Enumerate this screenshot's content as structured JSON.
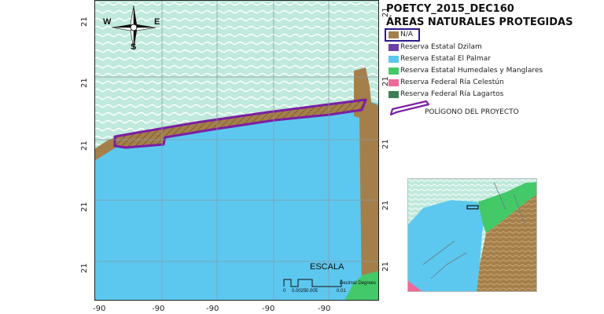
{
  "legend": {
    "code": "POETCY_2015_DEC160",
    "title": "ÁREAS NATURALES PROTEGIDAS",
    "items": [
      {
        "label": "N/A",
        "color": "#a57f4a"
      },
      {
        "label": "Reserva Estatal Dzilam",
        "color": "#6a3fa8"
      },
      {
        "label": "Reserva Estatal El Palmar",
        "color": "#5cc8ef"
      },
      {
        "label": "Reserva Estatal Humedales y Manglares",
        "color": "#43c968"
      },
      {
        "label": "Reserva Federal Ría Celestún",
        "color": "#ef6a9b"
      },
      {
        "label": "Reserva Federal Ría Lagartos",
        "color": "#3c7f55"
      }
    ],
    "polygon_label": "POLÍGONO DEL PROYECTO",
    "polygon_color": "#7b1fa2"
  },
  "compass": {
    "n": "N",
    "s": "S",
    "e": "E",
    "w": "W"
  },
  "left_lat_labels": [
    "21",
    "21",
    "21",
    "21",
    "21"
  ],
  "right_lat_labels": [
    "21",
    "21",
    "21",
    "21",
    "21"
  ],
  "bottom_lon_labels": [
    "-90",
    "-90",
    "-90",
    "-90",
    "-90"
  ],
  "scale": {
    "title": "ESCALA",
    "ticks": [
      "0",
      "0.0025",
      "0.005",
      "0.01"
    ],
    "unit": "Decimal Degrees"
  },
  "colors": {
    "sea": "#5cc8ef",
    "land": "#bfe9dc",
    "hatch": "#ffffff",
    "brown": "#a57f4a",
    "green": "#43c968",
    "pink": "#ef6a9b",
    "purple": "#7b1fa2"
  }
}
